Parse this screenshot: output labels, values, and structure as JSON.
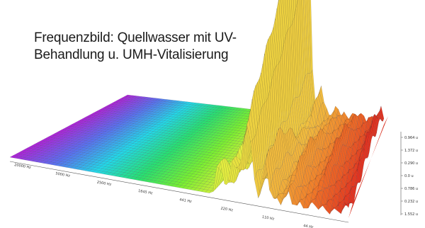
{
  "chart_data": {
    "type": "area",
    "title_line1": "Frequenzbild: Quellwasser mit UV-",
    "title_line2": "Behandlung u. UMH-Vitalisierung",
    "x_ticks": [
      "20000 Hz",
      "5000 Hz",
      "2500 Hz",
      "1645 Hz",
      "441 Hz",
      "220 Hz",
      "110 Hz",
      "44 Hz"
    ],
    "y_ticks": [
      "0.964 u",
      "1.372 u",
      "0.290 u",
      "0.0 u",
      "0.786 u",
      "0.232 u",
      "1.552 u"
    ],
    "grid": false,
    "legend": "none",
    "color_scale": [
      "#b020d8",
      "#5a6ff0",
      "#22d8e8",
      "#28e070",
      "#7af030",
      "#e4ee40",
      "#f0c040",
      "#f07a28",
      "#e03020"
    ],
    "x_range": [
      0,
      1
    ],
    "peaks": [
      {
        "x": 0.62,
        "height": 0.32
      },
      {
        "x": 0.66,
        "height": 0.2
      },
      {
        "x": 0.7,
        "height": 1.0
      },
      {
        "x": 0.755,
        "height": 0.22
      },
      {
        "x": 0.82,
        "height": 0.12
      },
      {
        "x": 0.9,
        "height": 0.1
      },
      {
        "x": 0.99,
        "height": 0.1
      }
    ]
  }
}
